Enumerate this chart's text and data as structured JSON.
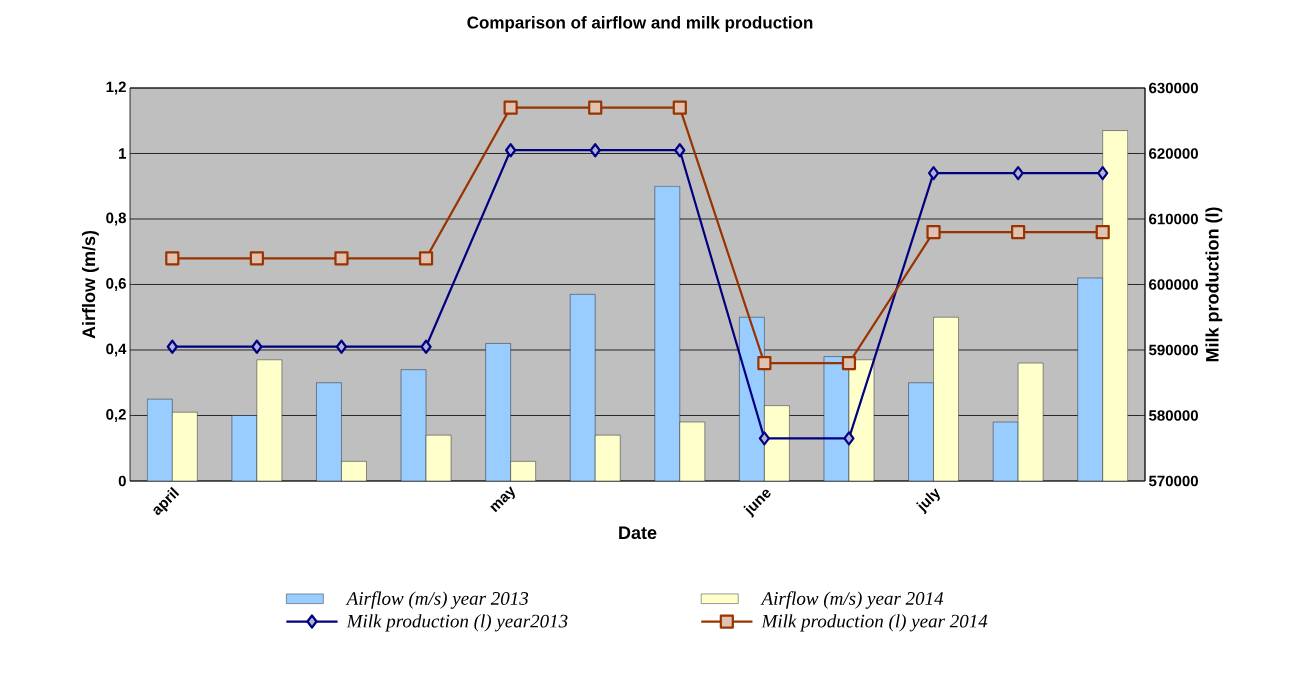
{
  "chart_data": {
    "type": "bar",
    "title": "Comparison of airflow and milk production",
    "xlabel": "Date",
    "ylabel": "Airflow (m/s)",
    "y2label": "Milk production (l)",
    "categories": [
      "april",
      null,
      null,
      null,
      "may",
      null,
      null,
      "june",
      null,
      "july",
      null,
      null
    ],
    "series": [
      {
        "name": "Airflow (m/s) year 2013",
        "color": "#99ccff",
        "values": [
          0.25,
          0.2,
          0.3,
          0.34,
          0.42,
          0.57,
          0.9,
          0.5,
          0.38,
          0.3,
          0.18,
          0.62
        ]
      },
      {
        "name": "Airflow (m/s) year 2014",
        "color": "#ffffcc",
        "values": [
          0.21,
          0.37,
          0.06,
          0.14,
          0.06,
          0.14,
          0.18,
          0.23,
          0.37,
          0.5,
          0.36,
          1.07
        ]
      },
      {
        "name": "Milk production (l) year2013",
        "type": "line",
        "axis": "y2",
        "color": "#000080",
        "marker": "diamond",
        "values": [
          590500,
          590500,
          590500,
          590500,
          620500,
          620500,
          620500,
          576500,
          576500,
          617000,
          617000,
          617000
        ]
      },
      {
        "name": "Milk production (l) year 2014",
        "type": "line",
        "axis": "y2",
        "color": "#993300",
        "marker": "square",
        "values": [
          604000,
          604000,
          604000,
          604000,
          627000,
          627000,
          627000,
          588000,
          588000,
          608000,
          608000,
          608000
        ]
      }
    ],
    "ylim": [
      0,
      1.2
    ],
    "yticks": [
      0,
      {
        "value": 0.2,
        "label": "0,2"
      },
      {
        "value": 0.4,
        "label": "0,4"
      },
      {
        "value": 0.6,
        "label": "0,6"
      },
      {
        "value": 0.8,
        "label": "0,8"
      },
      1,
      {
        "value": 1.2,
        "label": "1,2"
      }
    ],
    "y2lim": [
      570000,
      630000
    ],
    "y2ticks": [
      570000,
      580000,
      590000,
      600000,
      610000,
      620000,
      630000
    ],
    "grid": "y",
    "legend": "bottom"
  }
}
